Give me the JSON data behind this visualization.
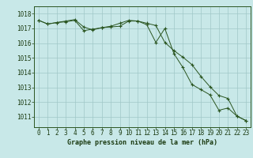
{
  "hours": [
    0,
    1,
    2,
    3,
    4,
    5,
    6,
    7,
    8,
    9,
    10,
    11,
    12,
    13,
    14,
    15,
    16,
    17,
    18,
    19,
    20,
    21,
    22,
    23
  ],
  "series1": [
    1017.55,
    1017.3,
    1017.4,
    1017.45,
    1017.55,
    1016.85,
    1016.95,
    1017.05,
    1017.1,
    1017.15,
    1017.5,
    1017.5,
    1017.25,
    1016.05,
    1017.0,
    1015.3,
    1014.35,
    1013.2,
    1012.85,
    1012.5,
    1011.45,
    1011.6,
    1011.05,
    1010.75
  ],
  "series2": [
    1017.55,
    1017.3,
    1017.4,
    1017.5,
    1017.6,
    1017.1,
    1016.9,
    1017.05,
    1017.15,
    1017.35,
    1017.55,
    1017.5,
    1017.35,
    1017.2,
    1016.05,
    1015.5,
    1015.05,
    1014.55,
    1013.75,
    1013.05,
    1012.45,
    1012.25,
    1011.05,
    1010.75
  ],
  "bg_color": "#c8e8e8",
  "grid_color": "#a0c8c8",
  "line_color": "#2a5520",
  "axis_bg": "#c8e8e8",
  "yticks": [
    1011,
    1012,
    1013,
    1014,
    1015,
    1016,
    1017,
    1018
  ],
  "ylim_min": 1010.3,
  "ylim_max": 1018.5,
  "xlim_min": -0.5,
  "xlim_max": 23.5,
  "xlabel": "Graphe pression niveau de la mer (hPa)",
  "tick_fontsize": 5.5,
  "label_fontsize": 6.0,
  "label_color": "#1a3a10"
}
